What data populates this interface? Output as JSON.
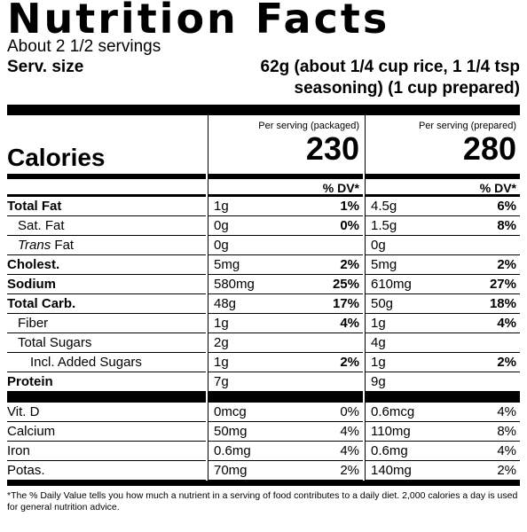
{
  "title": "Nutrition Facts",
  "servings": "About 2 1/2 servings",
  "serving_size": {
    "label": "Serv. size",
    "lines": [
      "62g (about 1/4 cup rice, 1 1/4 tsp",
      "seasoning) (1 cup prepared)"
    ]
  },
  "calories": {
    "label": "Calories",
    "columns": [
      {
        "heading": "Per serving (packaged)",
        "value": 230
      },
      {
        "heading": "Per serving (prepared)",
        "value": 280
      }
    ]
  },
  "dv_heading": "% DV*",
  "nutrients": [
    {
      "name": "Total Fat",
      "packaged": {
        "amount": "1g",
        "dv": "1%"
      },
      "prepared": {
        "amount": "4.5g",
        "dv": "6%"
      }
    },
    {
      "name": "Sat. Fat",
      "packaged": {
        "amount": "0g",
        "dv": "0%"
      },
      "prepared": {
        "amount": "1.5g",
        "dv": "8%"
      }
    },
    {
      "italic": "Trans",
      "name": "Fat",
      "packaged": {
        "amount": "0g"
      },
      "prepared": {
        "amount": "0g"
      }
    },
    {
      "name": "Cholest.",
      "packaged": {
        "amount": "5mg",
        "dv": "2%"
      },
      "prepared": {
        "amount": "5mg",
        "dv": "2%"
      }
    },
    {
      "name": "Sodium",
      "packaged": {
        "amount": "580mg",
        "dv": "25%"
      },
      "prepared": {
        "amount": "610mg",
        "dv": "27%"
      }
    },
    {
      "name": "Total Carb.",
      "packaged": {
        "amount": "48g",
        "dv": "17%"
      },
      "prepared": {
        "amount": "50g",
        "dv": "18%"
      }
    },
    {
      "name": "Fiber",
      "packaged": {
        "amount": "1g",
        "dv": "4%"
      },
      "prepared": {
        "amount": "1g",
        "dv": "4%"
      }
    },
    {
      "name": "Total Sugars",
      "packaged": {
        "amount": "2g"
      },
      "prepared": {
        "amount": "4g"
      }
    },
    {
      "name": "Incl. Added Sugars",
      "packaged": {
        "amount": "1g",
        "dv": "2%"
      },
      "prepared": {
        "amount": "1g",
        "dv": "2%"
      }
    },
    {
      "name": "Protein",
      "packaged": {
        "amount": "7g"
      },
      "prepared": {
        "amount": "9g"
      }
    }
  ],
  "vitamins": [
    {
      "name": "Vit. D",
      "packaged": {
        "amount": "0mcg",
        "dv": "0%"
      },
      "prepared": {
        "amount": "0.6mcg",
        "dv": "4%"
      }
    },
    {
      "name": "Calcium",
      "packaged": {
        "amount": "50mg",
        "dv": "4%"
      },
      "prepared": {
        "amount": "110mg",
        "dv": "8%"
      }
    },
    {
      "name": "Iron",
      "packaged": {
        "amount": "0.6mg",
        "dv": "4%"
      },
      "prepared": {
        "amount": "0.6mg",
        "dv": "4%"
      }
    },
    {
      "name": "Potas.",
      "packaged": {
        "amount": "70mg",
        "dv": "2%"
      },
      "prepared": {
        "amount": "140mg",
        "dv": "2%"
      }
    }
  ],
  "footnote": "*The % Daily Value tells you how much a nutrient in a serving of food contributes to a daily diet. 2,000 calories a day is used for general nutrition advice."
}
